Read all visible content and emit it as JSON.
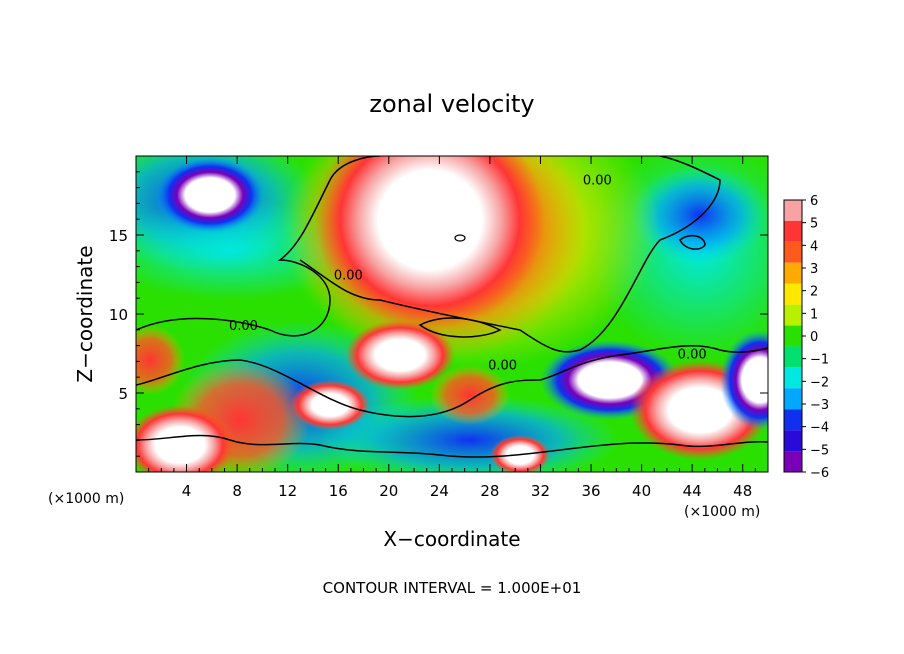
{
  "chart_data": {
    "type": "heatmap",
    "title": "zonal velocity",
    "xlabel": "X−coordinate",
    "ylabel": "Z−coordinate",
    "x_units_left": "(×1000 m)",
    "x_units_right": "(×1000 m)",
    "footer": "CONTOUR INTERVAL = 1.000E+01",
    "xlim": [
      0,
      50
    ],
    "ylim": [
      0,
      20
    ],
    "x_ticks": [
      4,
      8,
      12,
      16,
      20,
      24,
      28,
      32,
      36,
      40,
      44,
      48
    ],
    "y_ticks": [
      5,
      10,
      15
    ],
    "colorbar": {
      "levels": [
        6,
        5,
        4,
        3,
        2,
        1,
        0,
        -1,
        -2,
        -3,
        -4,
        -5,
        -6
      ],
      "colors": [
        "#f7a3a3",
        "#ff3535",
        "#ff5a1e",
        "#ffaa00",
        "#ffe800",
        "#b8f000",
        "#2ae000",
        "#00e070",
        "#00e8e0",
        "#00a8ff",
        "#1030f0",
        "#2a0ad8",
        "#7a00b8"
      ],
      "saturation_color": "#ffffff"
    },
    "contour_labels": [
      {
        "text": "0.00",
        "x": 16.8,
        "y": 12.5
      },
      {
        "text": "0.00",
        "x": 36.5,
        "y": 18.5
      },
      {
        "text": "0.00",
        "x": 8.5,
        "y": 9.3
      },
      {
        "text": "0.00",
        "x": 29.0,
        "y": 6.8
      },
      {
        "text": "0.00",
        "x": 44.0,
        "y": 7.5
      }
    ]
  }
}
